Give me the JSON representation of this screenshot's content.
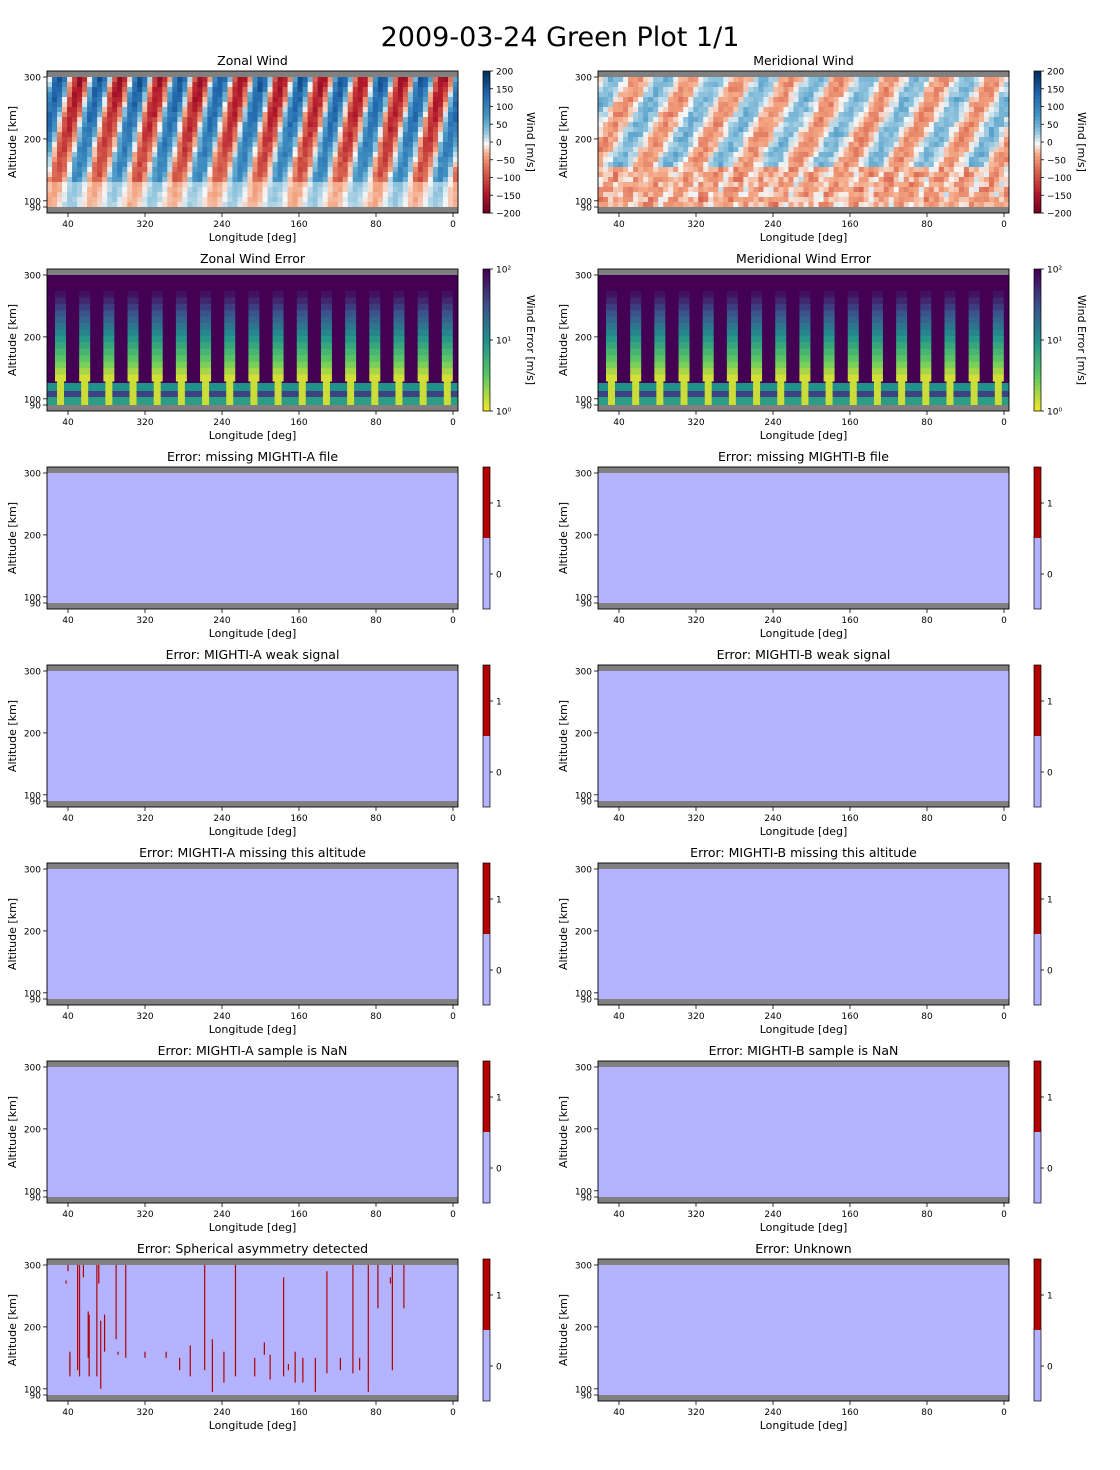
{
  "suptitle": "2009-03-24 Green Plot 1/1",
  "axis_common": {
    "xlabel": "Longitude [deg]",
    "ylabel": "Altitude [km]",
    "x_ticks": [
      "40",
      "320",
      "240",
      "160",
      "80",
      "0"
    ],
    "y_ticks": [
      "90",
      "100",
      "200",
      "300"
    ]
  },
  "colors": {
    "no_data_band": "#808080",
    "flag_zero": "#b3b3ff",
    "flag_one": "#b30000",
    "wind_negative": "#b2182b",
    "wind_positive": "#2166ac",
    "error_colormap": "viridis_r"
  },
  "chart_data": [
    {
      "type": "heatmap",
      "title": "Zonal Wind",
      "xlabel": "Longitude [deg]",
      "ylabel": "Altitude [km]",
      "colorbar": {
        "label": "Wind [m/s]",
        "scale": "linear",
        "range": [
          -200,
          200
        ],
        "ticks": [
          "200",
          "150",
          "100",
          "50",
          "0",
          "−50",
          "−100",
          "−150",
          "−200"
        ]
      },
      "colormap": "RdBu",
      "description_values": "tidal stripe pattern alternating east/west winds"
    },
    {
      "type": "heatmap",
      "title": "Meridional Wind",
      "xlabel": "Longitude [deg]",
      "ylabel": "Altitude [km]",
      "colorbar": {
        "label": "Wind [m/s]",
        "scale": "linear",
        "range": [
          -200,
          200
        ],
        "ticks": [
          "200",
          "150",
          "100",
          "50",
          "0",
          "−50",
          "−100",
          "−150",
          "−200"
        ]
      },
      "colormap": "RdBu"
    },
    {
      "type": "heatmap",
      "title": "Zonal Wind Error",
      "xlabel": "Longitude [deg]",
      "ylabel": "Altitude [km]",
      "colorbar": {
        "label": "Wind Error [m/s]",
        "scale": "log",
        "range": [
          1,
          100
        ],
        "ticks": [
          "10²",
          "10¹",
          "10⁰"
        ]
      },
      "colormap": "viridis_r",
      "stripe_count": 17
    },
    {
      "type": "heatmap",
      "title": "Meridional Wind Error",
      "xlabel": "Longitude [deg]",
      "ylabel": "Altitude [km]",
      "colorbar": {
        "label": "Wind Error [m/s]",
        "scale": "log",
        "range": [
          1,
          100
        ],
        "ticks": [
          "10²",
          "10¹",
          "10⁰"
        ]
      },
      "colormap": "viridis_r",
      "stripe_count": 17
    },
    {
      "type": "heatmap",
      "title": "Error: missing MIGHTI-A file",
      "colorbar": {
        "ticks": [
          "1",
          "0"
        ]
      },
      "flag_value": 0
    },
    {
      "type": "heatmap",
      "title": "Error: missing MIGHTI-B file",
      "colorbar": {
        "ticks": [
          "1",
          "0"
        ]
      },
      "flag_value": 0
    },
    {
      "type": "heatmap",
      "title": "Error: MIGHTI-A weak signal",
      "colorbar": {
        "ticks": [
          "1",
          "0"
        ]
      },
      "flag_value": 0
    },
    {
      "type": "heatmap",
      "title": "Error: MIGHTI-B weak signal",
      "colorbar": {
        "ticks": [
          "1",
          "0"
        ]
      },
      "flag_value": 0
    },
    {
      "type": "heatmap",
      "title": "Error: MIGHTI-A missing this altitude",
      "colorbar": {
        "ticks": [
          "1",
          "0"
        ]
      },
      "flag_value": 0
    },
    {
      "type": "heatmap",
      "title": "Error: MIGHTI-B missing this altitude",
      "colorbar": {
        "ticks": [
          "1",
          "0"
        ]
      },
      "flag_value": 0
    },
    {
      "type": "heatmap",
      "title": "Error: MIGHTI-A sample is NaN",
      "colorbar": {
        "ticks": [
          "1",
          "0"
        ]
      },
      "flag_value": 0
    },
    {
      "type": "heatmap",
      "title": "Error: MIGHTI-B sample is NaN",
      "colorbar": {
        "ticks": [
          "1",
          "0"
        ]
      },
      "flag_value": 0
    },
    {
      "type": "heatmap",
      "title": "Error: Spherical asymmetry detected",
      "colorbar": {
        "ticks": [
          "1",
          "0"
        ]
      },
      "flag_value": 0,
      "flagged_segments_lon_alt": [
        [
          63,
          130,
          300
        ],
        [
          38,
          130,
          150
        ],
        [
          40,
          290,
          300
        ],
        [
          28,
          300,
          120
        ],
        [
          30,
          130,
          300
        ],
        [
          19,
          225,
          150
        ],
        [
          10,
          300,
          120
        ],
        [
          2,
          220,
          160
        ],
        [
          350,
          300,
          180
        ],
        [
          348,
          155,
          160
        ],
        [
          340,
          300,
          150
        ],
        [
          320,
          160,
          150
        ],
        [
          298,
          160,
          150
        ],
        [
          284,
          150,
          130
        ],
        [
          273,
          170,
          120
        ],
        [
          258,
          300,
          130
        ],
        [
          250,
          180,
          95
        ],
        [
          238,
          160,
          110
        ],
        [
          226,
          300,
          120
        ],
        [
          206,
          150,
          120
        ],
        [
          196,
          175,
          155
        ],
        [
          190,
          155,
          115
        ],
        [
          176,
          280,
          120
        ],
        [
          171,
          130,
          140
        ],
        [
          164,
          160,
          110
        ],
        [
          156,
          150,
          110
        ],
        [
          143,
          150,
          95
        ],
        [
          131,
          290,
          125
        ],
        [
          117,
          150,
          130
        ],
        [
          104,
          300,
          125
        ],
        [
          97,
          150,
          130
        ],
        [
          88,
          300,
          95
        ],
        [
          78,
          300,
          230
        ],
        [
          65,
          280,
          270
        ],
        [
          51,
          230,
          300
        ],
        [
          42,
          275,
          270
        ],
        [
          38,
          160,
          120
        ],
        [
          24,
          300,
          280
        ],
        [
          18,
          220,
          120
        ],
        [
          8,
          300,
          270
        ],
        [
          6,
          210,
          100
        ]
      ]
    },
    {
      "type": "heatmap",
      "title": "Error: Unknown",
      "colorbar": {
        "ticks": [
          "1",
          "0"
        ]
      },
      "flag_value": 0
    }
  ]
}
